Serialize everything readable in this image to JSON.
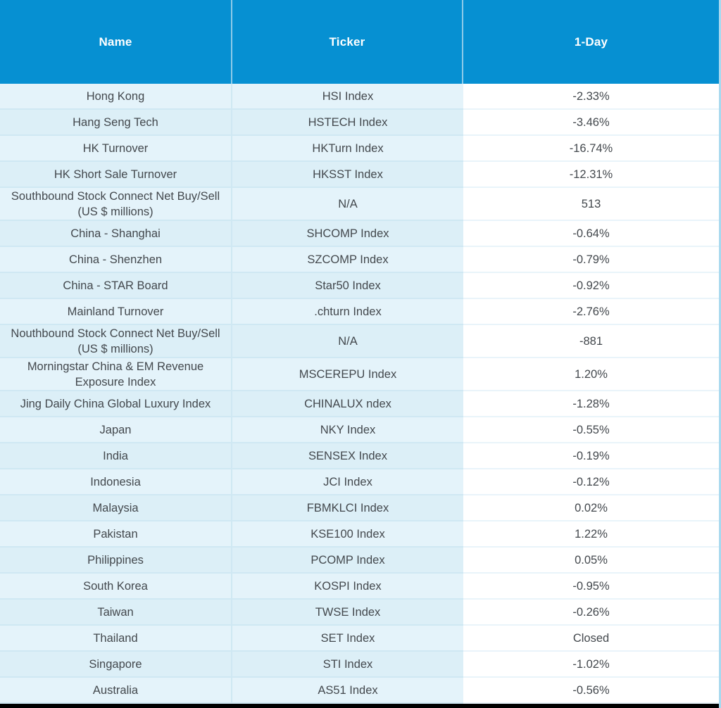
{
  "chart_data": {
    "type": "table",
    "columns": [
      "Name",
      "Ticker",
      "1-Day"
    ],
    "rows": [
      [
        "Hong Kong",
        "HSI Index",
        "-2.33%"
      ],
      [
        "Hang Seng Tech",
        "HSTECH Index",
        "-3.46%"
      ],
      [
        "HK Turnover",
        "HKTurn Index",
        "-16.74%"
      ],
      [
        "HK Short Sale Turnover",
        "HKSST Index",
        "-12.31%"
      ],
      [
        "Southbound Stock Connect Net Buy/Sell (US $ millions)",
        "N/A",
        "513"
      ],
      [
        "China - Shanghai",
        "SHCOMP Index",
        "-0.64%"
      ],
      [
        "China - Shenzhen",
        "SZCOMP Index",
        "-0.79%"
      ],
      [
        "China - STAR Board",
        "Star50 Index",
        "-0.92%"
      ],
      [
        "Mainland Turnover",
        ".chturn Index",
        "-2.76%"
      ],
      [
        "Nouthbound Stock Connect Net Buy/Sell (US $ millions)",
        "N/A",
        "-881"
      ],
      [
        "Morningstar China & EM Revenue Exposure Index",
        "MSCEREPU Index",
        "1.20%"
      ],
      [
        "Jing Daily China Global Luxury Index",
        "CHINALUX ndex",
        "-1.28%"
      ],
      [
        "Japan",
        "NKY Index",
        "-0.55%"
      ],
      [
        "India",
        "SENSEX Index",
        "-0.19%"
      ],
      [
        "Indonesia",
        "JCI Index",
        "-0.12%"
      ],
      [
        "Malaysia",
        "FBMKLCI Index",
        "0.02%"
      ],
      [
        "Pakistan",
        "KSE100 Index",
        "1.22%"
      ],
      [
        "Philippines",
        "PCOMP Index",
        "0.05%"
      ],
      [
        "South Korea",
        "KOSPI Index",
        "-0.95%"
      ],
      [
        "Taiwan",
        "TWSE Index",
        "-0.26%"
      ],
      [
        "Thailand",
        "SET Index",
        "Closed"
      ],
      [
        "Singapore",
        "STI Index",
        "-1.02%"
      ],
      [
        "Australia",
        "AS51 Index",
        "-0.56%"
      ]
    ],
    "layout": {
      "two_line_name_rows": [
        4,
        9,
        10
      ],
      "grid": "horizontal-row-dividers",
      "header_position": "top"
    }
  },
  "colors": {
    "header_bg": "#0690d2",
    "header_text": "#ffffff",
    "header_divider": "#8ecbe9",
    "row_bg_a": "#e4f3fa",
    "row_bg_b": "#dceff7",
    "value_bg": "#ffffff",
    "cell_divider": "#cfe8f3",
    "value_divider": "#e9f4fa",
    "body_text": "#43484d",
    "bottom_bar": "#000000",
    "table_edge": "#a9d9ef"
  }
}
